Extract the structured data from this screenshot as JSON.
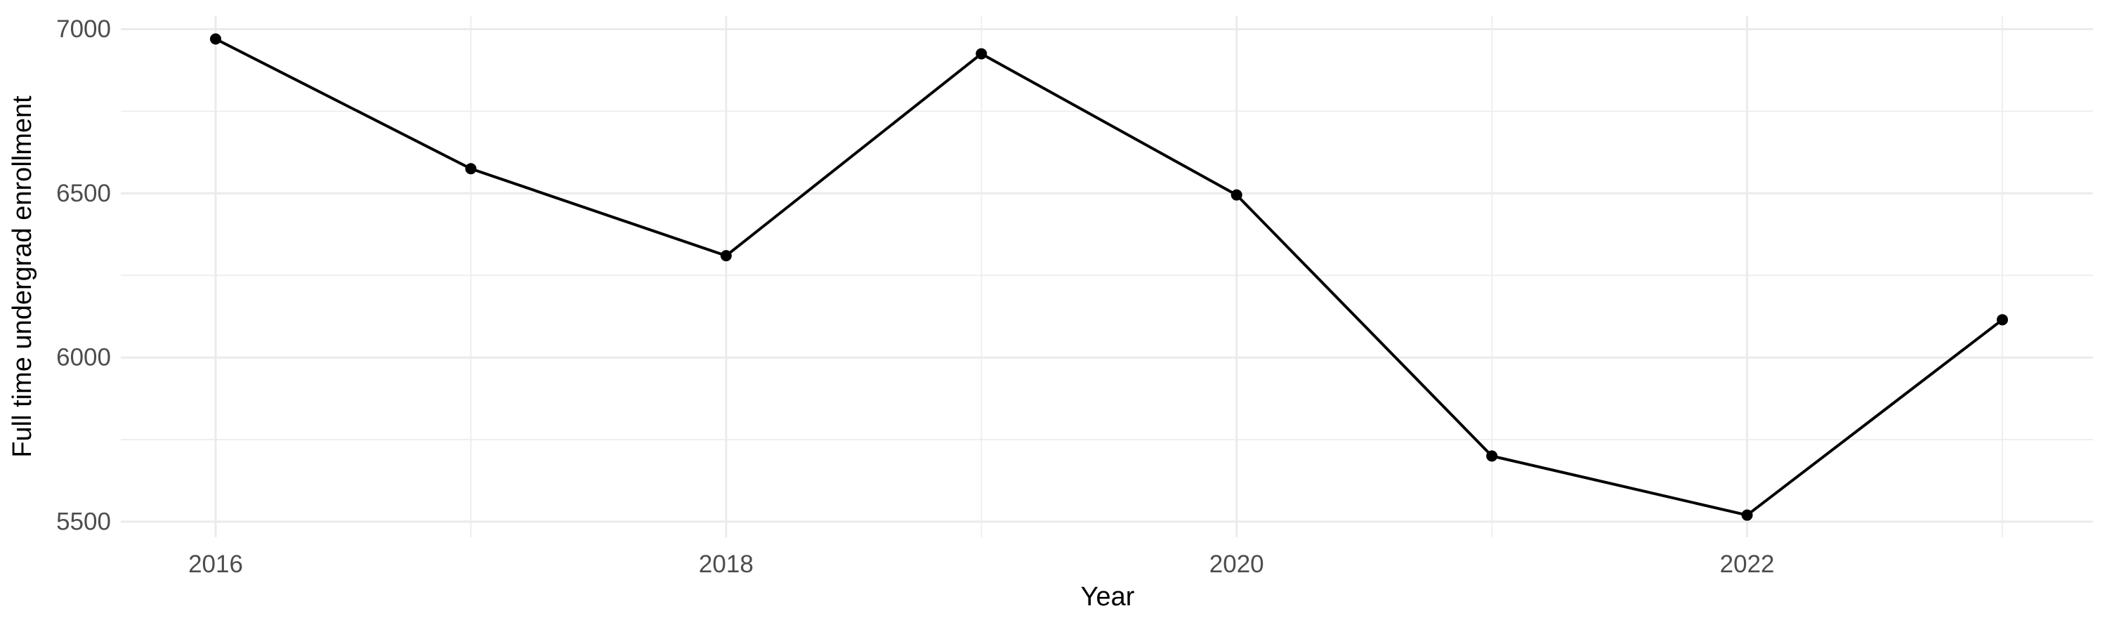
{
  "chart_data": {
    "type": "line",
    "title": "",
    "xlabel": "Year",
    "ylabel": "Full time undergrad enrollment",
    "x": [
      2016,
      2017,
      2018,
      2019,
      2020,
      2021,
      2022,
      2023
    ],
    "y": [
      6970,
      6575,
      6310,
      6925,
      6495,
      5700,
      5520,
      6115
    ],
    "x_ticks_major": [
      2016,
      2018,
      2020,
      2022
    ],
    "x_ticks_minor": [
      2017,
      2019,
      2021,
      2023
    ],
    "y_ticks_major": [
      7000,
      6500,
      6000,
      5500
    ],
    "y_ticks_minor": [
      6750,
      6250,
      5750
    ],
    "xlim": [
      2015.63,
      2023.36
    ],
    "ylim": [
      5454,
      7040
    ],
    "grid": true,
    "legend": "none",
    "marker": "point",
    "colors": {
      "line": "#000000",
      "point": "#000000",
      "grid_major": "#EBEBEB",
      "grid_minor": "#EDEDED",
      "tick_label": "#4D4D4D",
      "axis_title": "#000000",
      "background": "#FFFFFF"
    }
  }
}
